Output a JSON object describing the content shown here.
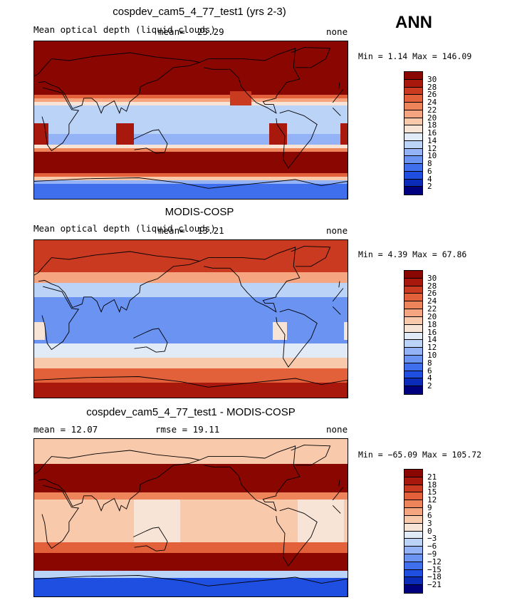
{
  "season_label": "ANN",
  "colors": {
    "scale_21": [
      "#00007f",
      "#0a2cb8",
      "#1f4fe0",
      "#3f6fec",
      "#6a93f2",
      "#93b3f6",
      "#bcd3f8",
      "#e1ebf7",
      "#f7e4d6",
      "#f9c9ac",
      "#f5a680",
      "#ee8459",
      "#e2613b",
      "#c93a20",
      "#a9180c",
      "#8a0600"
    ]
  },
  "panels": [
    {
      "id": "model",
      "title": "cospdev_cam5_4_77_test1 (yrs 2-3)",
      "left_label": "Mean optical depth (liquid clouds)",
      "mean_label": "mean=",
      "mean_value": "25.29",
      "right_label": "none",
      "minmax": "Min =    1.14 Max = 146.09",
      "levels": [
        "30",
        "28",
        "26",
        "24",
        "22",
        "20",
        "18",
        "16",
        "14",
        "12",
        "10",
        "8",
        "6",
        "4",
        "2"
      ],
      "field_style": "model"
    },
    {
      "id": "obs",
      "title": "MODIS-COSP",
      "left_label": "Mean optical depth (liquid clouds)",
      "mean_label": "mean=",
      "mean_value": "13.21",
      "right_label": "none",
      "minmax": "Min =    4.39 Max =  67.86",
      "levels": [
        "30",
        "28",
        "26",
        "24",
        "22",
        "20",
        "18",
        "16",
        "14",
        "12",
        "10",
        "8",
        "6",
        "4",
        "2"
      ],
      "field_style": "obs"
    },
    {
      "id": "diff",
      "title": "cospdev_cam5_4_77_test1 - MODIS-COSP",
      "left_label": "mean =    12.07",
      "mid_label": "rmse =    19.11",
      "right_label": "none",
      "minmax": "Min = −65.09 Max = 105.72",
      "levels": [
        "21",
        "18",
        "15",
        "12",
        "9",
        "6",
        "3",
        "0",
        "−3",
        "−6",
        "−9",
        "−12",
        "−15",
        "−18",
        "−21"
      ],
      "field_style": "diff"
    }
  ]
}
